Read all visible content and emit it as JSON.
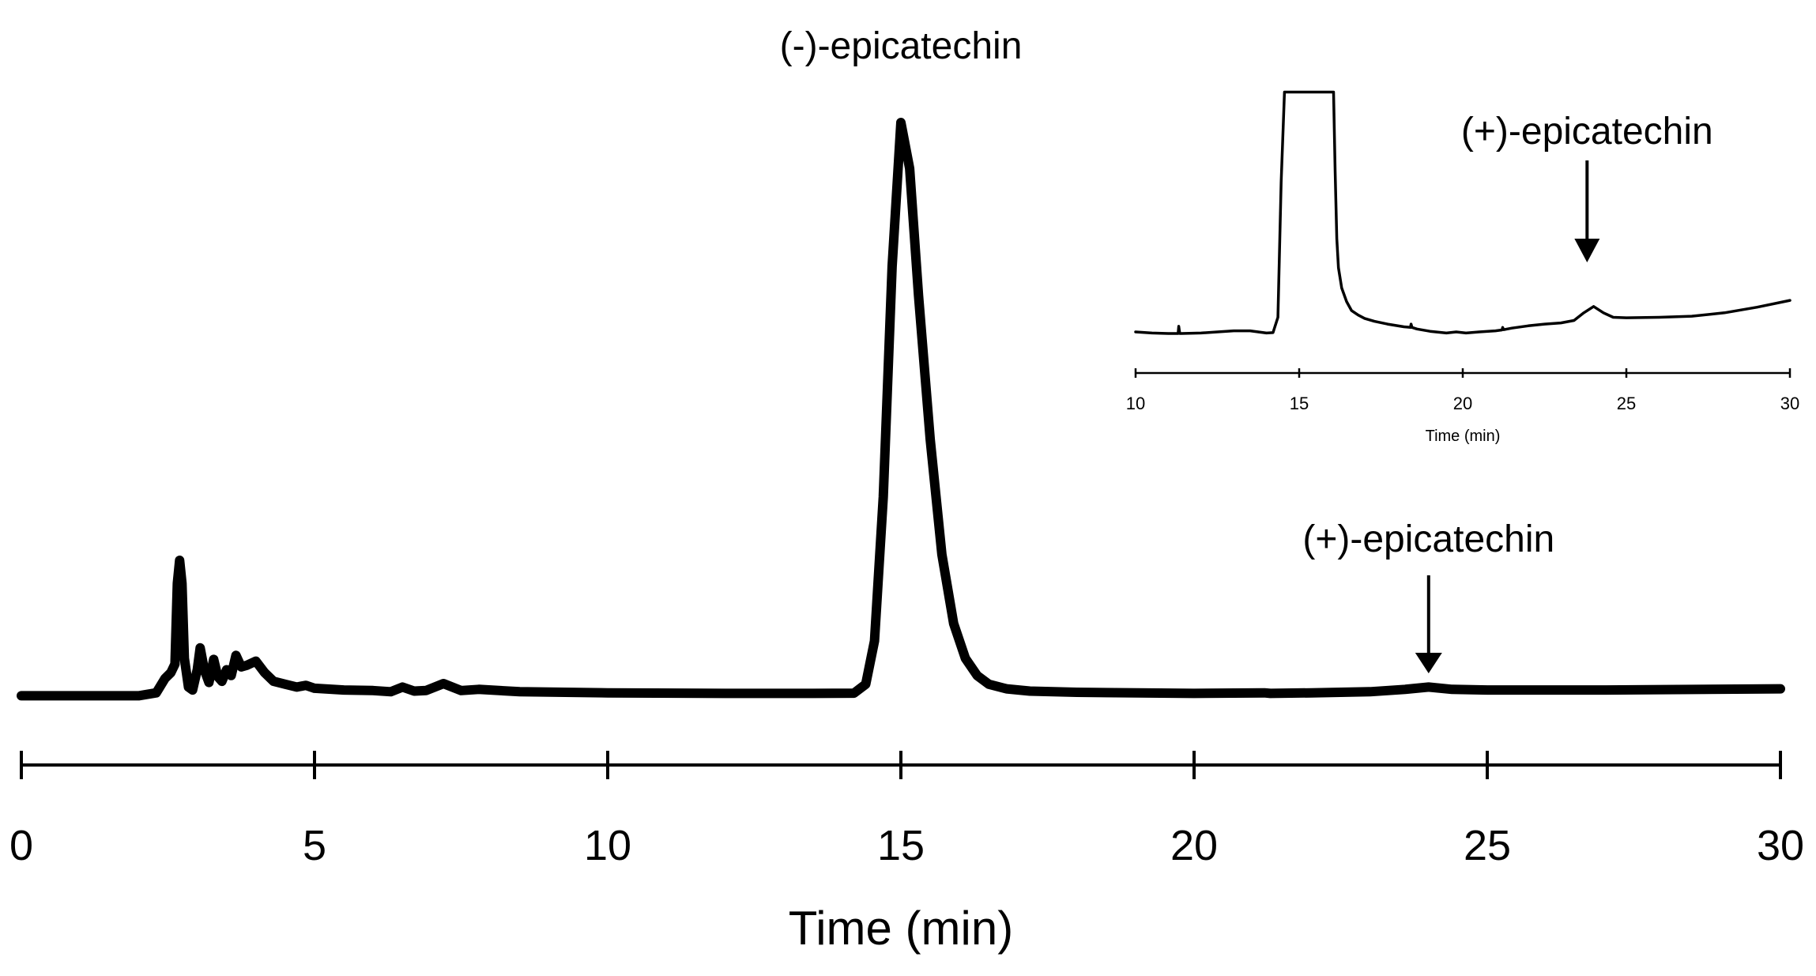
{
  "chart_data": [
    {
      "type": "line",
      "title": "",
      "xlabel": "Time (min)",
      "ylabel": "",
      "xlim": [
        0,
        30
      ],
      "xticks": [
        "0",
        "5",
        "10",
        "15",
        "20",
        "25",
        "30"
      ],
      "grid": false,
      "series": [
        {
          "x": [
            0,
            1,
            2,
            2.3,
            2.45,
            2.55,
            2.62,
            2.66,
            2.7,
            2.74,
            2.78,
            2.85,
            2.92,
            3.0,
            3.05,
            3.12,
            3.2,
            3.28,
            3.35,
            3.42,
            3.5,
            3.58,
            3.66,
            3.75,
            3.85,
            4.0,
            4.15,
            4.3,
            4.5,
            4.7,
            4.85,
            5.0,
            5.5,
            6.0,
            6.3,
            6.5,
            6.7,
            6.9,
            7.2,
            7.5,
            7.8,
            8.5,
            10,
            12,
            13.5,
            14.2,
            14.4,
            14.55,
            14.7,
            14.85,
            15.0,
            15.15,
            15.3,
            15.5,
            15.7,
            15.9,
            16.1,
            16.3,
            16.5,
            16.8,
            17.2,
            18,
            20,
            21.2,
            21.3,
            22,
            23,
            23.6,
            24.0,
            24.4,
            25,
            27,
            30
          ],
          "y": [
            0.5,
            0.5,
            0.5,
            1.0,
            3.5,
            4.5,
            6.0,
            20.0,
            24.0,
            20.0,
            7.0,
            2.0,
            1.5,
            5.0,
            8.8,
            5.0,
            2.8,
            6.8,
            3.8,
            3.0,
            5.0,
            4.0,
            7.5,
            5.5,
            5.8,
            6.5,
            4.5,
            3.0,
            2.5,
            2.0,
            2.3,
            1.8,
            1.5,
            1.4,
            1.2,
            2.0,
            1.3,
            1.4,
            2.6,
            1.4,
            1.6,
            1.2,
            1.0,
            0.9,
            0.9,
            0.95,
            2.5,
            10.0,
            35.0,
            75.0,
            100.0,
            92.0,
            70.0,
            45.0,
            25.0,
            13.0,
            7.0,
            4.0,
            2.5,
            1.7,
            1.3,
            1.1,
            0.9,
            1.0,
            0.9,
            1.0,
            1.2,
            1.6,
            2.0,
            1.6,
            1.5,
            1.5,
            1.7
          ]
        }
      ],
      "annotations": [
        {
          "text": "(-)-epicatechin",
          "x": 15.0,
          "y": 100
        },
        {
          "text": "(+)-epicatechin",
          "x": 24.0,
          "y": 2.0,
          "arrow": true
        }
      ]
    },
    {
      "type": "line",
      "title": "",
      "xlabel": "Time (min)",
      "ylabel": "",
      "xlim": [
        10,
        30
      ],
      "xticks": [
        "10",
        "15",
        "20",
        "25",
        "30"
      ],
      "grid": false,
      "series": [
        {
          "x": [
            10,
            10.5,
            11,
            11.3,
            11.32,
            11.35,
            11.4,
            12,
            12.5,
            13,
            13.5,
            14,
            14.2,
            14.35,
            14.45,
            14.55,
            16.05,
            16.1,
            16.15,
            16.2,
            16.3,
            16.45,
            16.6,
            16.8,
            17.0,
            17.3,
            17.7,
            18.2,
            18.4,
            18.42,
            18.45,
            18.6,
            19.0,
            19.5,
            19.8,
            20.1,
            20.5,
            21.0,
            21.2,
            21.22,
            21.25,
            21.5,
            22.0,
            22.5,
            23.0,
            23.4,
            23.7,
            24.0,
            24.3,
            24.6,
            25.0,
            26.0,
            27.0,
            28.0,
            29.0,
            30.0
          ],
          "y": [
            3.5,
            3.0,
            2.8,
            2.8,
            6.0,
            2.8,
            2.8,
            3.0,
            3.5,
            4.0,
            4.0,
            3.0,
            3.2,
            10.0,
            70.0,
            110.0,
            110.0,
            75.0,
            45.0,
            32.0,
            23.0,
            17.0,
            13.0,
            11.0,
            9.5,
            8.2,
            7.0,
            5.8,
            5.5,
            7.0,
            5.5,
            4.8,
            3.8,
            3.0,
            3.5,
            3.0,
            3.5,
            4.0,
            4.4,
            5.5,
            4.5,
            5.2,
            6.2,
            7.0,
            7.5,
            8.6,
            12.0,
            14.8,
            12.0,
            10.0,
            9.8,
            10.0,
            10.5,
            12.0,
            14.5,
            17.5
          ]
        }
      ],
      "annotations": [
        {
          "text": "(+)-epicatechin",
          "x": 23.8,
          "y": 14.8,
          "arrow": true
        }
      ]
    }
  ]
}
